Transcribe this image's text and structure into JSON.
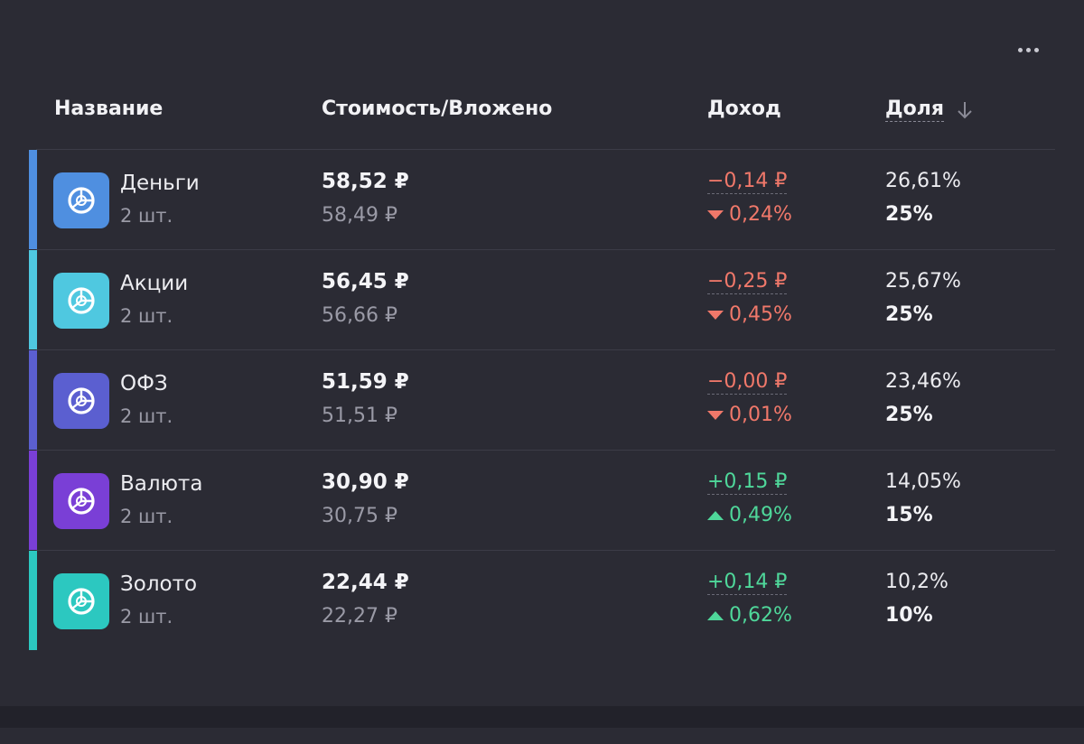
{
  "header": {
    "name": "Название",
    "value": "Стоимость/Вложено",
    "income": "Доход",
    "share": "Доля"
  },
  "rows": [
    {
      "name": "Деньги",
      "qty": "2 шт.",
      "value": "58,52 ₽",
      "invested": "58,49 ₽",
      "income_abs": "−0,14 ₽",
      "income_pct": "0,24%",
      "trend": "down",
      "share": "26,61%",
      "target": "25%",
      "color": "#4f8fe0"
    },
    {
      "name": "Акции",
      "qty": "2 шт.",
      "value": "56,45 ₽",
      "invested": "56,66 ₽",
      "income_abs": "−0,25 ₽",
      "income_pct": "0,45%",
      "trend": "down",
      "share": "25,67%",
      "target": "25%",
      "color": "#4fc8e0"
    },
    {
      "name": "ОФЗ",
      "qty": "2 шт.",
      "value": "51,59 ₽",
      "invested": "51,51 ₽",
      "income_abs": "−0,00 ₽",
      "income_pct": "0,01%",
      "trend": "down",
      "share": "23,46%",
      "target": "25%",
      "color": "#5b5fd0"
    },
    {
      "name": "Валюта",
      "qty": "2 шт.",
      "value": "30,90 ₽",
      "invested": "30,75 ₽",
      "income_abs": "+0,15 ₽",
      "income_pct": "0,49%",
      "trend": "up",
      "share": "14,05%",
      "target": "15%",
      "color": "#7a3fd6"
    },
    {
      "name": "Золото",
      "qty": "2 шт.",
      "value": "22,44 ₽",
      "invested": "22,27 ₽",
      "income_abs": "+0,14 ₽",
      "income_pct": "0,62%",
      "trend": "up",
      "share": "10,2%",
      "target": "10%",
      "color": "#2cc8c0"
    }
  ],
  "icons": {
    "menu": "more-dots-icon",
    "sort": "arrow-down-icon",
    "asset": "portfolio-pie-icon"
  }
}
